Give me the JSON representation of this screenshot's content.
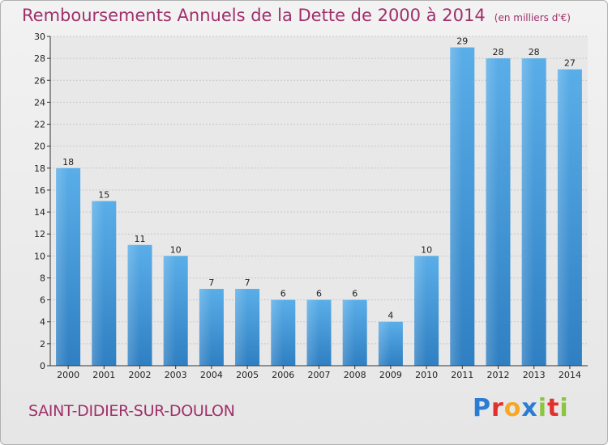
{
  "title": "Remboursements Annuels de la Dette de 2000 à 2014",
  "unit": "(en milliers d'€)",
  "commune": "SAINT-DIDIER-SUR-DOULON",
  "brand": {
    "logo_text": "Proxiti",
    "colors": [
      "#2b7cd3",
      "#e2312d",
      "#f7a823",
      "#2b7cd3",
      "#8cc63f",
      "#e2312d",
      "#8cc63f"
    ]
  },
  "colors": {
    "bar_top": "#5aaee8",
    "bar_bottom": "#2f7fc2",
    "title": "#a0306a",
    "grid": "#c8c8c8"
  },
  "chart_data": {
    "type": "bar",
    "title": "Remboursements Annuels de la Dette de 2000 à 2014",
    "ylabel": "(en milliers d'€)",
    "xlabel": "",
    "categories": [
      "2000",
      "2001",
      "2002",
      "2003",
      "2004",
      "2005",
      "2006",
      "2007",
      "2008",
      "2009",
      "2010",
      "2011",
      "2012",
      "2013",
      "2014"
    ],
    "values": [
      18,
      15,
      11,
      10,
      7,
      7,
      6,
      6,
      6,
      4,
      10,
      29,
      28,
      28,
      27
    ],
    "ylim": [
      0,
      30
    ],
    "yticks": [
      "0",
      "2",
      "4",
      "6",
      "8",
      "10",
      "12",
      "14",
      "16",
      "18",
      "20",
      "22",
      "24",
      "26",
      "28",
      "30"
    ],
    "grid": true,
    "legend": "none"
  }
}
